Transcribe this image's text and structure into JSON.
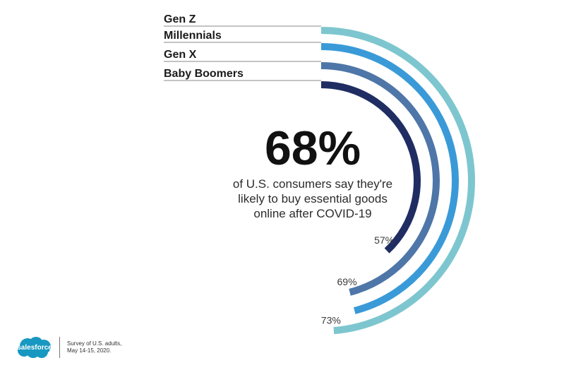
{
  "chart_data": {
    "type": "radial-bar",
    "title": "68%",
    "subtitle": [
      "of U.S. consumers say they're",
      "likely to buy essential goods",
      "online after COVID-19"
    ],
    "series": [
      {
        "name": "Gen Z",
        "value": 73,
        "value_label": "73%",
        "color": "#7dc6cf"
      },
      {
        "name": "Millennials",
        "value": 69,
        "value_label": "",
        "color": "#3a9ad8"
      },
      {
        "name": "Gen X",
        "value": 69,
        "value_label": "69%",
        "color": "#4e76a8"
      },
      {
        "name": "Baby Boomers",
        "value": 57,
        "value_label": "57%",
        "color": "#1f2d63"
      }
    ],
    "range": [
      0,
      100
    ]
  },
  "footer": {
    "logo_text": "salesforce",
    "logo_color": "#1798c1",
    "source_lines": [
      "Survey of U.S. adults,",
      "May 14-15, 2020."
    ]
  }
}
